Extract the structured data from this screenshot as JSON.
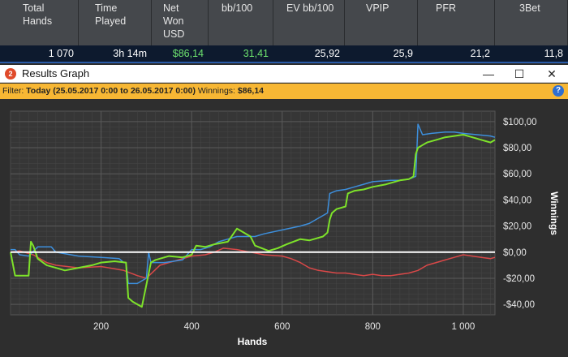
{
  "stats_header": {
    "columns": [
      {
        "label": "Total\nHands",
        "value": "1 070",
        "value_color": "white"
      },
      {
        "label": "Time\nPlayed",
        "value": "3h 14m",
        "value_color": "white"
      },
      {
        "label": "Net\nWon\nUSD",
        "value": "$86,14",
        "value_color": "green"
      },
      {
        "label": "bb/100",
        "value": "31,41",
        "value_color": "green"
      },
      {
        "label": "EV bb/100",
        "value": "25,92",
        "value_color": "white"
      },
      {
        "label": "VPIP",
        "value": "25,9",
        "value_color": "white"
      },
      {
        "label": "PFR",
        "value": "21,2",
        "value_color": "white"
      },
      {
        "label": "3Bet",
        "value": "11,8",
        "value_color": "white"
      }
    ]
  },
  "window": {
    "app_icon": "2",
    "title": "Results Graph",
    "minimize_glyph": "—",
    "maximize_glyph": "☐",
    "close_glyph": "✕"
  },
  "filter": {
    "prefix": "Filter:",
    "range": "Today (25.05.2017 0:00 to 26.05.2017 0:00)",
    "winnings_label": "Winnings:",
    "winnings_value": "$86,14",
    "help_glyph": "?"
  },
  "colors": {
    "net_won": "#7ee32a",
    "all_in_ev": "#3d8fdc",
    "non_showdown": "#d94848",
    "zero_line": "#ffffff",
    "accent_filter": "#f7b734"
  },
  "chart_data": {
    "type": "line",
    "title": "",
    "xlabel": "Hands",
    "ylabel": "Winnings",
    "xlim": [
      0,
      1070
    ],
    "ylim": [
      -48,
      108
    ],
    "x_ticks": [
      200,
      400,
      600,
      800,
      1000
    ],
    "x_tick_labels": [
      "200",
      "400",
      "600",
      "800",
      "1 000"
    ],
    "y_ticks": [
      100,
      80,
      60,
      40,
      20,
      0,
      -20,
      -40
    ],
    "y_tick_labels": [
      "$100,00",
      "$80,00",
      "$60,00",
      "$40,00",
      "$20,00",
      "$0,00",
      "-$20,00",
      "-$40,00"
    ],
    "grid": true,
    "legend": "none",
    "series": [
      {
        "key": "net_won",
        "x": [
          0,
          10,
          15,
          20,
          40,
          45,
          50,
          60,
          80,
          100,
          120,
          150,
          180,
          200,
          230,
          255,
          260,
          270,
          290,
          300,
          310,
          320,
          350,
          380,
          400,
          410,
          430,
          450,
          480,
          500,
          510,
          530,
          540,
          570,
          590,
          610,
          640,
          660,
          690,
          700,
          705,
          710,
          720,
          740,
          745,
          760,
          780,
          800,
          830,
          860,
          880,
          890,
          895,
          900,
          910,
          920,
          940,
          960,
          980,
          1000,
          1020,
          1040,
          1050,
          1060,
          1070
        ],
        "y": [
          0,
          -18,
          -18,
          -18,
          -18,
          8,
          5,
          -5,
          -10,
          -12,
          -14,
          -12,
          -10,
          -8,
          -7,
          -8,
          -35,
          -38,
          -42,
          -25,
          -8,
          -6,
          -3,
          -4,
          -2,
          5,
          4,
          6,
          8,
          18,
          16,
          12,
          5,
          1,
          3,
          6,
          10,
          9,
          12,
          15,
          25,
          30,
          33,
          35,
          45,
          47,
          48,
          50,
          52,
          55,
          56,
          58,
          75,
          80,
          82,
          84,
          86,
          88,
          89,
          90,
          88,
          86,
          85,
          84,
          86
        ]
      },
      {
        "key": "all_in_ev",
        "x": [
          0,
          10,
          20,
          40,
          60,
          90,
          100,
          150,
          200,
          240,
          250,
          255,
          260,
          280,
          300,
          305,
          310,
          340,
          380,
          400,
          420,
          440,
          460,
          480,
          500,
          540,
          560,
          600,
          640,
          660,
          680,
          700,
          705,
          720,
          740,
          760,
          780,
          800,
          840,
          860,
          880,
          895,
          900,
          910,
          930,
          960,
          980,
          1000,
          1030,
          1060,
          1070
        ],
        "y": [
          2,
          2,
          -2,
          -3,
          4,
          4,
          0,
          -3,
          -4,
          -5,
          -8,
          -8,
          -24,
          -24,
          -20,
          0,
          -8,
          -8,
          -6,
          2,
          2,
          4,
          8,
          10,
          12,
          12,
          14,
          17,
          20,
          22,
          26,
          30,
          45,
          47,
          48,
          50,
          52,
          54,
          55,
          55,
          56,
          58,
          98,
          90,
          91,
          92,
          92,
          91,
          90,
          89,
          88
        ]
      },
      {
        "key": "non_showdown",
        "x": [
          0,
          20,
          50,
          80,
          100,
          150,
          200,
          250,
          280,
          300,
          330,
          360,
          400,
          430,
          450,
          470,
          500,
          530,
          560,
          600,
          620,
          640,
          660,
          680,
          700,
          720,
          740,
          760,
          780,
          800,
          820,
          840,
          860,
          880,
          900,
          920,
          940,
          960,
          980,
          1000,
          1020,
          1040,
          1060,
          1070
        ],
        "y": [
          0,
          1,
          -2,
          -8,
          -10,
          -12,
          -11,
          -14,
          -18,
          -20,
          -10,
          -7,
          -3,
          -2,
          0,
          3,
          2,
          0,
          -2,
          -3,
          -5,
          -8,
          -12,
          -14,
          -15,
          -16,
          -16,
          -17,
          -18,
          -17,
          -18,
          -18,
          -17,
          -16,
          -14,
          -10,
          -8,
          -6,
          -4,
          -2,
          -3,
          -4,
          -5,
          -4
        ]
      }
    ]
  }
}
